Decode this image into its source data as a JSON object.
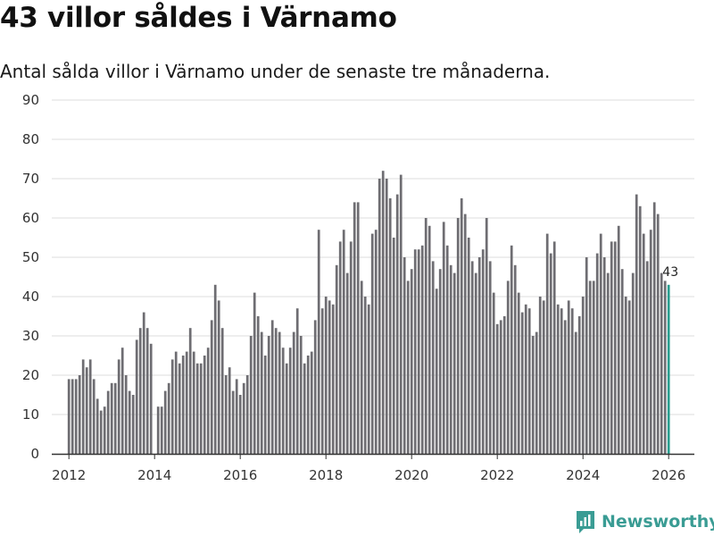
{
  "header": {
    "title": "43 villor såldes i Värnamo",
    "subtitle": "Antal sålda villor i Värnamo under de senaste tre månaderna."
  },
  "brand": {
    "name": "Newsworthy",
    "icon": "newsworthy-logo-icon",
    "color": "#3a9c94"
  },
  "colors": {
    "bar": "#6e6d72",
    "highlight": "#2a9d8f",
    "grid": "#dddddd",
    "axis": "#333333"
  },
  "chart_data": {
    "type": "bar",
    "title": "43 villor såldes i Värnamo",
    "subtitle": "Antal sålda villor i Värnamo under de senaste tre månaderna.",
    "xlabel": "",
    "ylabel": "",
    "ylim": [
      0,
      90
    ],
    "yticks": [
      "0",
      "10",
      "20",
      "30",
      "40",
      "50",
      "60",
      "70",
      "80",
      "90"
    ],
    "xlim": [
      2011.6,
      2026.6
    ],
    "xticks": [
      "2012",
      "2014",
      "2016",
      "2018",
      "2020",
      "2022",
      "2024",
      "2026"
    ],
    "grid": true,
    "legend": "none",
    "start": {
      "year": 2012,
      "month": 1
    },
    "values": [
      19,
      19,
      19,
      20,
      24,
      22,
      24,
      19,
      14,
      11,
      12,
      16,
      18,
      18,
      24,
      27,
      20,
      16,
      15,
      29,
      32,
      36,
      32,
      28,
      0,
      12,
      12,
      16,
      18,
      24,
      26,
      23,
      25,
      26,
      32,
      26,
      23,
      23,
      25,
      27,
      34,
      43,
      39,
      32,
      20,
      22,
      16,
      19,
      15,
      18,
      20,
      30,
      41,
      35,
      31,
      25,
      30,
      34,
      32,
      31,
      27,
      23,
      27,
      31,
      37,
      30,
      23,
      25,
      26,
      34,
      57,
      37,
      40,
      39,
      38,
      48,
      54,
      57,
      46,
      54,
      64,
      64,
      44,
      40,
      38,
      56,
      57,
      70,
      72,
      70,
      65,
      55,
      66,
      71,
      50,
      44,
      47,
      52,
      52,
      53,
      60,
      58,
      49,
      42,
      47,
      59,
      53,
      48,
      46,
      60,
      65,
      61,
      55,
      49,
      46,
      50,
      52,
      60,
      49,
      41,
      33,
      34,
      35,
      44,
      53,
      48,
      41,
      36,
      38,
      37,
      30,
      31,
      40,
      39,
      56,
      51,
      54,
      38,
      37,
      34,
      39,
      37,
      31,
      35,
      40,
      50,
      44,
      44,
      51,
      56,
      50,
      46,
      54,
      54,
      58,
      47,
      40,
      39,
      46,
      66,
      63,
      56,
      49,
      57,
      64,
      61,
      46,
      44,
      43
    ],
    "highlight_last": true,
    "data_label": {
      "text": "43",
      "value": 43
    }
  }
}
